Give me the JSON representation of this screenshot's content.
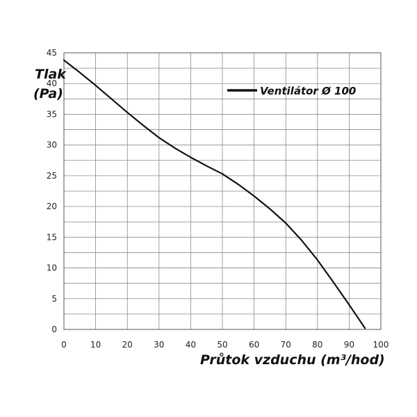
{
  "chart_data": {
    "type": "line",
    "ylabel_line1": "Tlak",
    "ylabel_line2": "(Pa)",
    "xlabel": "Průtok vzduchu (m³/hod)",
    "xlim": [
      0,
      100
    ],
    "ylim": [
      0,
      45
    ],
    "x_ticks": [
      0,
      10,
      20,
      30,
      40,
      50,
      60,
      70,
      80,
      90,
      100
    ],
    "y_ticks": [
      0,
      5,
      10,
      15,
      20,
      25,
      30,
      35,
      40,
      45
    ],
    "grid": true,
    "legend_position": "top-right",
    "series": [
      {
        "name": "Ventilátor Ø 100",
        "color": "#111111",
        "points": [
          [
            0,
            43.8
          ],
          [
            5,
            41.8
          ],
          [
            10,
            39.7
          ],
          [
            15,
            37.5
          ],
          [
            20,
            35.3
          ],
          [
            25,
            33.2
          ],
          [
            30,
            31.2
          ],
          [
            35,
            29.5
          ],
          [
            40,
            28.0
          ],
          [
            45,
            26.6
          ],
          [
            50,
            25.3
          ],
          [
            55,
            23.6
          ],
          [
            60,
            21.7
          ],
          [
            65,
            19.6
          ],
          [
            70,
            17.3
          ],
          [
            75,
            14.5
          ],
          [
            80,
            11.3
          ],
          [
            85,
            7.7
          ],
          [
            90,
            4.0
          ],
          [
            95,
            0.2
          ]
        ]
      }
    ]
  }
}
